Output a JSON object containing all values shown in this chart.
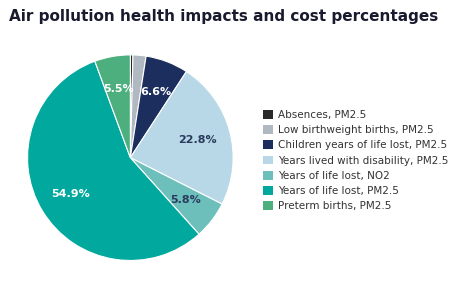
{
  "title": "Air pollution health impacts and cost percentages",
  "slices": [
    {
      "label": "Absences, PM2.5",
      "value": 0.4,
      "color": "#2a2a2a"
    },
    {
      "label": "Low birthweight births, PM2.5",
      "value": 2.0,
      "color": "#b0b8c1"
    },
    {
      "label": "Children years of life lost, PM2.5",
      "value": 6.6,
      "color": "#1c2e5e"
    },
    {
      "label": "Years lived with disability, PM2.5",
      "value": 22.8,
      "color": "#b8d8e8"
    },
    {
      "label": "Years of life lost, NO2",
      "value": 5.8,
      "color": "#6dbfbb"
    },
    {
      "label": "Years of life lost, PM2.5",
      "value": 54.9,
      "color": "#00a89d"
    },
    {
      "label": "Preterm births, PM2.5",
      "value": 5.5,
      "color": "#4caf7d"
    }
  ],
  "pct_labels": {
    "Absences, PM2.5": "",
    "Low birthweight births, PM2.5": "",
    "Children years of life lost, PM2.5": "6.6%",
    "Years lived with disability, PM2.5": "22.8%",
    "Years of life lost, NO2": "5.8%",
    "Years of life lost, PM2.5": "54.9%",
    "Preterm births, PM2.5": "5.5%"
  },
  "pct_colors": {
    "Absences, PM2.5": "white",
    "Low birthweight births, PM2.5": "white",
    "Children years of life lost, PM2.5": "white",
    "Years lived with disability, PM2.5": "#2a3a5c",
    "Years of life lost, NO2": "#2a3a5c",
    "Years of life lost, PM2.5": "white",
    "Preterm births, PM2.5": "white"
  },
  "title_color": "#1a1a2e",
  "title_fontsize": 11,
  "label_fontsize": 8,
  "legend_fontsize": 7.5,
  "background_color": "#ffffff"
}
